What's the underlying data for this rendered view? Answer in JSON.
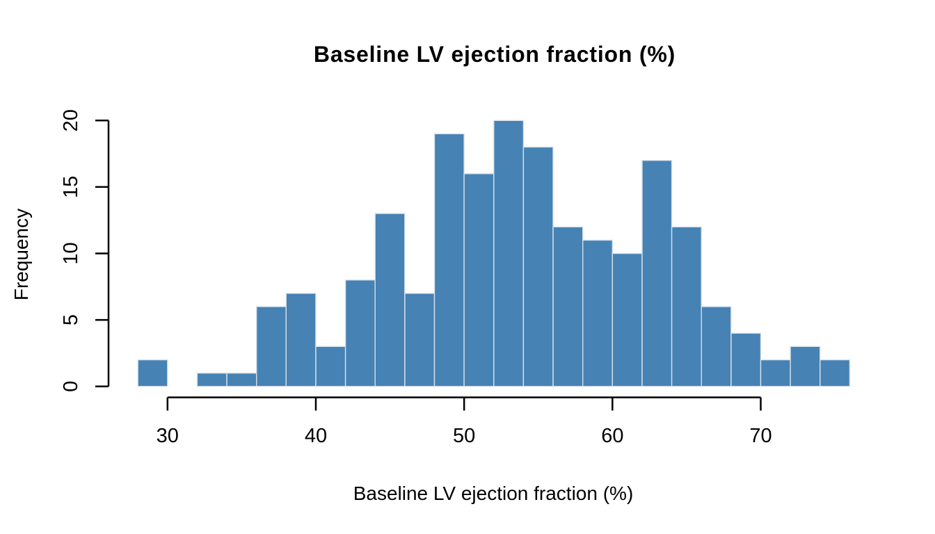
{
  "chart_data": {
    "type": "bar",
    "subtype": "histogram",
    "title": "Baseline LV ejection fraction (%)",
    "xlabel": "Baseline LV ejection fraction (%)",
    "ylabel": "Frequency",
    "bin_width": 2,
    "bin_edges": [
      28,
      30,
      32,
      34,
      36,
      38,
      40,
      42,
      44,
      46,
      48,
      50,
      52,
      54,
      56,
      58,
      60,
      62,
      64,
      66,
      68,
      70,
      72,
      74,
      76
    ],
    "counts": [
      2,
      0,
      1,
      1,
      6,
      7,
      3,
      8,
      13,
      7,
      19,
      16,
      20,
      18,
      12,
      11,
      10,
      17,
      12,
      6,
      4,
      2,
      3,
      2
    ],
    "total_count": 200,
    "x_ticks": [
      30,
      40,
      50,
      60,
      70
    ],
    "y_ticks": [
      0,
      5,
      10,
      15,
      20
    ],
    "xlim": [
      28,
      76
    ],
    "ylim": [
      0,
      20
    ],
    "grid": false,
    "legend": null,
    "bar_fill": "#4682B4",
    "bar_border": "#d6e0ea",
    "axis_color": "#000000",
    "background": "#ffffff"
  }
}
